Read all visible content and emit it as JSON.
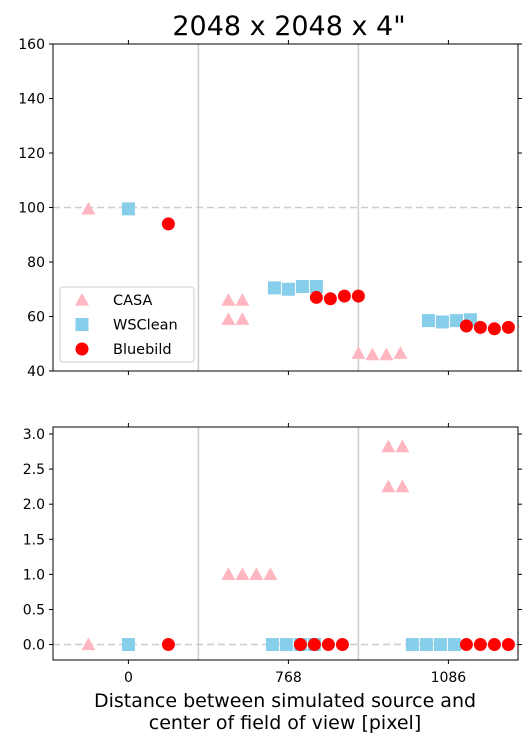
{
  "chart_data": {
    "title": "2048 x 2048 x 4\"",
    "xlabel_line1": "Distance between simulated source and",
    "xlabel_line2": "center of field of view [pixel]",
    "colors": {
      "CASA": "#ffb6c1",
      "WSClean": "#87ceeb",
      "Bluebild": "#ff0000"
    },
    "group_labels": [
      "0",
      "768",
      "1086"
    ],
    "xlim": [
      -3.77,
      19.48
    ],
    "group_separators": [
      3.5,
      11.5
    ],
    "panels": [
      {
        "id": "top",
        "type": "scatter",
        "ylim": [
          40,
          160
        ],
        "yticks": [
          "40",
          "60",
          "80",
          "100",
          "120",
          "140",
          "160"
        ],
        "reference_line": 100,
        "legend": {
          "placement": "lower-left",
          "entries": [
            "CASA",
            "WSClean",
            "Bluebild"
          ]
        },
        "series": [
          {
            "name": "CASA",
            "marker": "triangle",
            "points": [
              [
                -2,
                99.5
              ],
              [
                5,
                59
              ],
              [
                5,
                66
              ],
              [
                5.7,
                59
              ],
              [
                5.7,
                66
              ],
              [
                11.5,
                46.5
              ],
              [
                12.2,
                46
              ],
              [
                12.9,
                46
              ],
              [
                13.6,
                46.5
              ]
            ]
          },
          {
            "name": "WSClean",
            "marker": "square",
            "points": [
              [
                0,
                99.5
              ],
              [
                7.3,
                70.5
              ],
              [
                8,
                70
              ],
              [
                8.7,
                71
              ],
              [
                9.4,
                71
              ],
              [
                15,
                58.5
              ],
              [
                15.7,
                58
              ],
              [
                16.4,
                58.5
              ],
              [
                17.1,
                58.8
              ]
            ]
          },
          {
            "name": "Bluebild",
            "marker": "circle",
            "points": [
              [
                2,
                94
              ],
              [
                9.4,
                67
              ],
              [
                10.1,
                66.5
              ],
              [
                10.8,
                67.5
              ],
              [
                11.5,
                67.5
              ],
              [
                16.9,
                56.5
              ],
              [
                17.6,
                56
              ],
              [
                18.3,
                55.5
              ],
              [
                19,
                56
              ]
            ]
          }
        ]
      },
      {
        "id": "bottom",
        "type": "scatter",
        "ylim": [
          -0.22,
          3.1
        ],
        "yticks": [
          "0.0",
          "0.5",
          "1.0",
          "1.5",
          "2.0",
          "2.5",
          "3.0"
        ],
        "reference_line": 0,
        "series": [
          {
            "name": "CASA",
            "marker": "triangle",
            "points": [
              [
                -2,
                0
              ],
              [
                5,
                1
              ],
              [
                5.7,
                1
              ],
              [
                6.4,
                1
              ],
              [
                7.1,
                1
              ],
              [
                13,
                2.82
              ],
              [
                13.7,
                2.82
              ],
              [
                13,
                2.25
              ],
              [
                13.7,
                2.25
              ]
            ]
          },
          {
            "name": "WSClean",
            "marker": "square",
            "points": [
              [
                0,
                0
              ],
              [
                7.2,
                0
              ],
              [
                7.9,
                0
              ],
              [
                8.6,
                0
              ],
              [
                9.3,
                0
              ],
              [
                14.2,
                0
              ],
              [
                14.9,
                0
              ],
              [
                15.6,
                0
              ],
              [
                16.3,
                0
              ]
            ]
          },
          {
            "name": "Bluebild",
            "marker": "circle",
            "points": [
              [
                2,
                0
              ],
              [
                8.6,
                0
              ],
              [
                9.3,
                0
              ],
              [
                10.0,
                0
              ],
              [
                10.7,
                0
              ],
              [
                16.9,
                0
              ],
              [
                17.6,
                0
              ],
              [
                18.3,
                0
              ],
              [
                19,
                0
              ]
            ]
          }
        ]
      }
    ]
  }
}
